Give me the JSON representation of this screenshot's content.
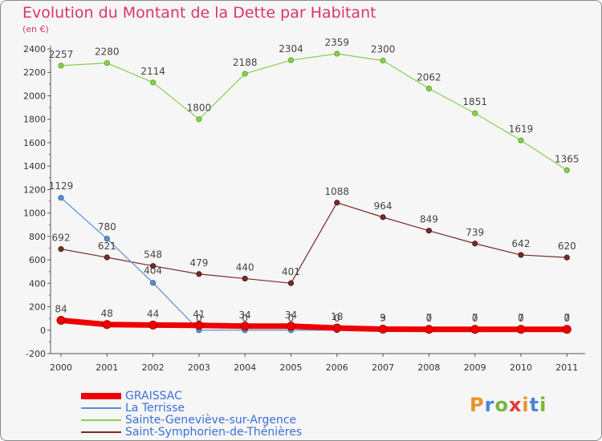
{
  "header": {
    "title": "Evolution du Montant de la Dette par Habitant",
    "subtitle": "(en €)"
  },
  "logo": {
    "letters": [
      "P",
      "r",
      "o",
      "x",
      "i",
      "t",
      "i"
    ],
    "colors": [
      "#ef8f2c",
      "#4a86d6",
      "#7ab63e",
      "#e23b3b",
      "#ef8f2c",
      "#4a86d6",
      "#7ab63e"
    ]
  },
  "chart_data": {
    "type": "line",
    "title": "Evolution du Montant de la Dette par Habitant",
    "ylabel": "(en €)",
    "xlabel": "",
    "x": [
      "2000",
      "2001",
      "2002",
      "2003",
      "2004",
      "2005",
      "2006",
      "2007",
      "2008",
      "2009",
      "2010",
      "2011"
    ],
    "ylim": [
      -200,
      2400
    ],
    "yticks": [
      -200,
      0,
      200,
      400,
      600,
      800,
      1000,
      1200,
      1400,
      1600,
      1800,
      2000,
      2200,
      2400
    ],
    "grid": false,
    "legend_position": "bottom-left",
    "series": [
      {
        "name": "GRAISSAC",
        "color": "#ee0000",
        "values": [
          84,
          48,
          44,
          41,
          34,
          34,
          18,
          9,
          7,
          7,
          7,
          7
        ]
      },
      {
        "name": "La Terrisse",
        "color": "#5b8fd1",
        "values": [
          1129,
          780,
          404,
          0,
          0,
          0,
          0,
          3,
          0,
          0,
          0,
          0
        ]
      },
      {
        "name": "Sainte-Geneviève-sur-Argence",
        "color": "#86cf4c",
        "values": [
          2257,
          2280,
          2114,
          1800,
          2188,
          2304,
          2359,
          2300,
          2062,
          1851,
          1619,
          1365
        ]
      },
      {
        "name": "Saint-Symphorien-de-Thénières",
        "color": "#7a2a2a",
        "values": [
          692,
          621,
          548,
          479,
          440,
          401,
          1088,
          964,
          849,
          739,
          642,
          620
        ]
      }
    ]
  }
}
